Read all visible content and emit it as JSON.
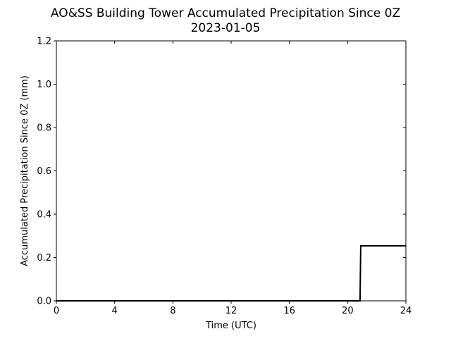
{
  "chart_data": {
    "type": "line",
    "title": "AO&SS Building Tower Accumulated Precipitation Since 0Z",
    "subtitle": "2023-01-05",
    "xlabel": "Time (UTC)",
    "ylabel": "Accumulated Precipitation Since 0Z (mm)",
    "xlim": [
      0,
      24
    ],
    "ylim": [
      0,
      1.2
    ],
    "xticks": [
      0,
      4,
      8,
      12,
      16,
      20,
      24
    ],
    "xtick_labels": [
      "0",
      "4",
      "8",
      "12",
      "16",
      "20",
      "24"
    ],
    "yticks": [
      0,
      0.2,
      0.4,
      0.6,
      0.8,
      1.0,
      1.2
    ],
    "ytick_labels": [
      "0.0",
      "0.2",
      "0.4",
      "0.6",
      "0.8",
      "1.0",
      "1.2"
    ],
    "grid": false,
    "series": [
      {
        "color": "#000000",
        "x": [
          0,
          20.85,
          20.9,
          24
        ],
        "y": [
          0,
          0,
          0.254,
          0.254
        ]
      }
    ]
  }
}
